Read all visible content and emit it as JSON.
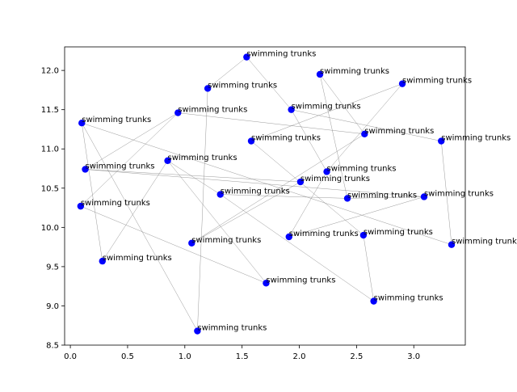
{
  "chart_data": {
    "type": "scatter",
    "title": "",
    "xlabel": "",
    "ylabel": "",
    "xlim": [
      -0.05,
      3.45
    ],
    "ylim": [
      8.5,
      12.3
    ],
    "grid": false,
    "point_color": "#0000ff",
    "edge_color": "#808080",
    "x_ticks": [
      {
        "value": 0.0,
        "label": "0.0"
      },
      {
        "value": 0.5,
        "label": "0.5"
      },
      {
        "value": 1.0,
        "label": "1.0"
      },
      {
        "value": 1.5,
        "label": "1.5"
      },
      {
        "value": 2.0,
        "label": "2.0"
      },
      {
        "value": 2.5,
        "label": "2.5"
      },
      {
        "value": 3.0,
        "label": "3.0"
      }
    ],
    "y_ticks": [
      {
        "value": 8.5,
        "label": "8.5"
      },
      {
        "value": 9.0,
        "label": "9.0"
      },
      {
        "value": 9.5,
        "label": "9.5"
      },
      {
        "value": 10.0,
        "label": "10.0"
      },
      {
        "value": 10.5,
        "label": "10.5"
      },
      {
        "value": 11.0,
        "label": "11.0"
      },
      {
        "value": 11.5,
        "label": "11.5"
      },
      {
        "value": 12.0,
        "label": "12.0"
      }
    ],
    "points": [
      {
        "x": 1.54,
        "y": 12.17,
        "label": "swimming trunks"
      },
      {
        "x": 2.18,
        "y": 11.95,
        "label": "swimming trunks"
      },
      {
        "x": 2.9,
        "y": 11.83,
        "label": "swimming trunks"
      },
      {
        "x": 1.2,
        "y": 11.77,
        "label": "swimming trunks"
      },
      {
        "x": 0.94,
        "y": 11.46,
        "label": "swimming trunks"
      },
      {
        "x": 1.93,
        "y": 11.5,
        "label": "swimming trunks"
      },
      {
        "x": 0.1,
        "y": 11.33,
        "label": "swimming trunks"
      },
      {
        "x": 2.57,
        "y": 11.19,
        "label": "swimming trunks"
      },
      {
        "x": 1.58,
        "y": 11.1,
        "label": "swimming trunks"
      },
      {
        "x": 3.24,
        "y": 11.1,
        "label": "swimming trunks"
      },
      {
        "x": 0.85,
        "y": 10.85,
        "label": "swimming trunks"
      },
      {
        "x": 0.13,
        "y": 10.74,
        "label": "swimming trunks"
      },
      {
        "x": 2.24,
        "y": 10.71,
        "label": "swimming trunks"
      },
      {
        "x": 2.01,
        "y": 10.58,
        "label": "swimming trunks"
      },
      {
        "x": 1.31,
        "y": 10.42,
        "label": "swimming trunks"
      },
      {
        "x": 2.42,
        "y": 10.37,
        "label": "swimming trunks"
      },
      {
        "x": 3.09,
        "y": 10.39,
        "label": "swimming trunks"
      },
      {
        "x": 0.09,
        "y": 10.27,
        "label": "swimming trunks"
      },
      {
        "x": 1.91,
        "y": 9.88,
        "label": "swimming trunks"
      },
      {
        "x": 2.56,
        "y": 9.9,
        "label": "swimming trunks"
      },
      {
        "x": 1.06,
        "y": 9.8,
        "label": "swimming trunks"
      },
      {
        "x": 3.33,
        "y": 9.78,
        "label": "swimming trunks"
      },
      {
        "x": 0.28,
        "y": 9.57,
        "label": "swimming trunks"
      },
      {
        "x": 1.71,
        "y": 9.29,
        "label": "swimming trunks"
      },
      {
        "x": 2.65,
        "y": 9.06,
        "label": "swimming trunks"
      },
      {
        "x": 1.11,
        "y": 8.68,
        "label": "swimming trunks"
      }
    ],
    "edges": [
      [
        3,
        0
      ],
      [
        0,
        5
      ],
      [
        3,
        25
      ],
      [
        1,
        7
      ],
      [
        1,
        15
      ],
      [
        2,
        12
      ],
      [
        2,
        8
      ],
      [
        4,
        7
      ],
      [
        4,
        17
      ],
      [
        6,
        22
      ],
      [
        6,
        21
      ],
      [
        5,
        12
      ],
      [
        5,
        9
      ],
      [
        8,
        19
      ],
      [
        9,
        21
      ],
      [
        10,
        14
      ],
      [
        10,
        23
      ],
      [
        11,
        4
      ],
      [
        11,
        16
      ],
      [
        11,
        13
      ],
      [
        12,
        18
      ],
      [
        13,
        20
      ],
      [
        14,
        15
      ],
      [
        15,
        16
      ],
      [
        16,
        18
      ],
      [
        14,
        24
      ],
      [
        17,
        23
      ],
      [
        19,
        24
      ],
      [
        20,
        7
      ],
      [
        22,
        10
      ],
      [
        6,
        25
      ]
    ]
  }
}
